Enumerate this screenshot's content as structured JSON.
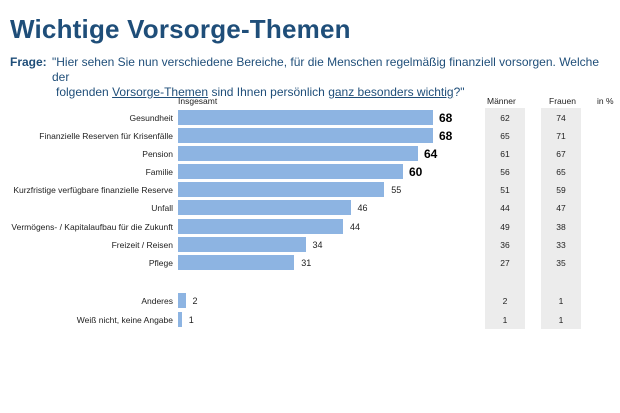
{
  "title": "Wichtige Vorsorge-Themen",
  "question": {
    "label": "Frage:",
    "text_1": "\"Hier sehen Sie nun verschiedene Bereiche, für die Menschen regelmäßig finanziell vorsorgen. Welche der",
    "text_2a": "folgenden ",
    "text_2b": "Vorsorge-Themen",
    "text_2c": " sind Ihnen persönlich ",
    "text_2d": "ganz besonders wichtig",
    "text_2e": "?\""
  },
  "headers": {
    "total": "Insgesamt",
    "men": "Männer",
    "women": "Frauen",
    "unit": "in %"
  },
  "chart_data": {
    "type": "bar",
    "orientation": "horizontal",
    "unit": "%",
    "categories": [
      "Gesundheit",
      "Finanzielle Reserven für Krisenfälle",
      "Pension",
      "Familie",
      "Kurzfristige verfügbare finanzielle Reserve",
      "Unfall",
      "Vermögens- / Kapitalaufbau für die Zukunft",
      "Freizeit / Reisen",
      "Pflege",
      "Anderes",
      "Weiß nicht, keine Angabe"
    ],
    "series": [
      {
        "name": "Insgesamt",
        "values": [
          68,
          68,
          64,
          60,
          55,
          46,
          44,
          34,
          31,
          2,
          1
        ]
      },
      {
        "name": "Männer",
        "values": [
          62,
          65,
          61,
          56,
          51,
          44,
          49,
          36,
          27,
          2,
          1
        ]
      },
      {
        "name": "Frauen",
        "values": [
          74,
          71,
          67,
          65,
          59,
          47,
          38,
          33,
          35,
          1,
          1
        ]
      }
    ],
    "emphasized_values": [
      0,
      1,
      2,
      3
    ],
    "xlim": [
      0,
      100
    ],
    "bar_color": "#8db4e2"
  },
  "colors": {
    "title": "#1f4e79",
    "bar": "#8db4e2",
    "column_bg": "#ececec"
  }
}
